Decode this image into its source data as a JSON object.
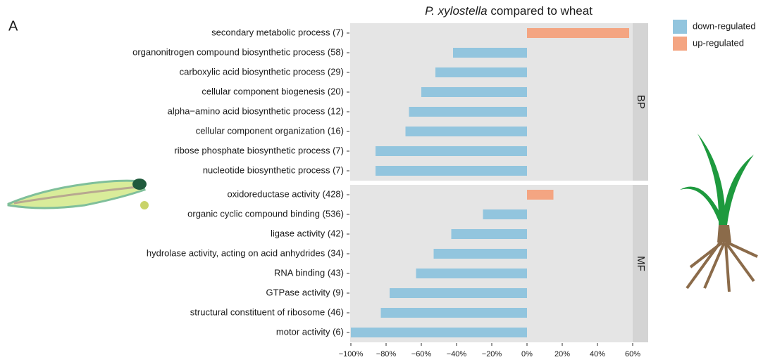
{
  "chart_data": {
    "type": "bar",
    "orientation": "horizontal",
    "panel_label": "A",
    "title": {
      "italic": "P. xylostella",
      "text": "compared to wheat"
    },
    "legend": [
      {
        "name": "down-regulated",
        "color": "#92c5de"
      },
      {
        "name": "up-regulated",
        "color": "#f4a582"
      }
    ],
    "facets": [
      {
        "label": "BP",
        "categories": [
          "secondary metabolic process (7)",
          "organonitrogen compound biosynthetic process (58)",
          "carboxylic acid biosynthetic process (29)",
          "cellular component biogenesis (20)",
          "alpha−amino acid biosynthetic process (12)",
          "cellular component organization (16)",
          "ribose phosphate biosynthetic process (7)",
          "nucleotide biosynthetic process (7)"
        ],
        "values": [
          58,
          -42,
          -52,
          -60,
          -67,
          -69,
          -86,
          -86
        ]
      },
      {
        "label": "MF",
        "categories": [
          "oxidoreductase activity (428)",
          "organic cyclic compound binding (536)",
          "ligase activity (42)",
          "hydrolase activity, acting on acid anhydrides (34)",
          "RNA binding (43)",
          "GTPase activity (9)",
          "structural constituent of ribosome (46)",
          "motor activity (6)"
        ],
        "values": [
          15,
          -25,
          -43,
          -53,
          -63,
          -78,
          -83,
          -100
        ]
      }
    ],
    "xlim": [
      -100,
      60
    ],
    "xticks": [
      {
        "value": -100,
        "label": "−100%"
      },
      {
        "value": -80,
        "label": "−80%"
      },
      {
        "value": -60,
        "label": "−60%"
      },
      {
        "value": -40,
        "label": "−40%"
      },
      {
        "value": -20,
        "label": "−20%"
      },
      {
        "value": 0,
        "label": "0%"
      },
      {
        "value": 20,
        "label": "20%"
      },
      {
        "value": 40,
        "label": "40%"
      },
      {
        "value": 60,
        "label": "60%"
      }
    ],
    "grid": false
  }
}
